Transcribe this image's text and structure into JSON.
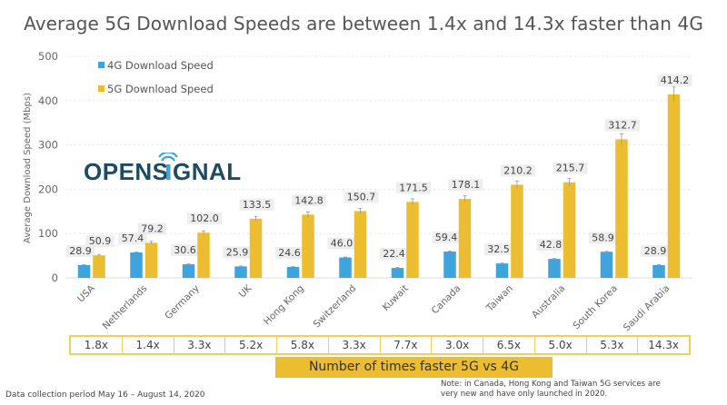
{
  "chart_data": {
    "type": "bar",
    "title": "Average 5G Download Speeds are between 1.4x and 14.3x faster than 4G",
    "xlabel": "",
    "ylabel": "Average Download Speed (Mbps)",
    "ylim": [
      0,
      500
    ],
    "yticks": [
      "0",
      "100",
      "200",
      "300",
      "400",
      "500"
    ],
    "grid": true,
    "legend_position": "top-left",
    "categories": [
      "USA",
      "Netherlands",
      "Germany",
      "UK",
      "Hong Kong",
      "Switzerland",
      "Kuwait",
      "Canada",
      "Taiwan",
      "Australia",
      "South Korea",
      "Saudi Arabia"
    ],
    "series": [
      {
        "name": "4G Download Speed",
        "color": "#3fa4dc",
        "values": [
          28.9,
          57.4,
          30.6,
          25.9,
          24.6,
          46.0,
          22.4,
          59.4,
          32.5,
          42.8,
          58.9,
          28.9
        ],
        "labels": [
          "28.9",
          "57.4",
          "30.6",
          "25.9",
          "24.6",
          "46.0",
          "22.4",
          "59.4",
          "32.5",
          "42.8",
          "58.9",
          "28.9"
        ]
      },
      {
        "name": "5G Download Speed",
        "color": "#ecbd30",
        "values": [
          50.9,
          79.2,
          102.0,
          133.5,
          142.8,
          150.7,
          171.5,
          178.1,
          210.2,
          215.7,
          312.7,
          414.2
        ],
        "labels": [
          "50.9",
          "79.2",
          "102.0",
          "133.5",
          "142.8",
          "150.7",
          "171.5",
          "178.1",
          "210.2",
          "215.7",
          "312.7",
          "414.2"
        ]
      }
    ],
    "multipliers": [
      "1.8x",
      "1.4x",
      "3.3x",
      "5.2x",
      "5.8x",
      "3.3x",
      "7.7x",
      "3.0x",
      "6.5x",
      "5.0x",
      "5.3x",
      "14.3x"
    ],
    "multiplier_label": "Number of times faster 5G vs 4G"
  },
  "logo": {
    "text": "OPENSIGNAL",
    "color": "#1d4b63",
    "accent": "#3fa4dc"
  },
  "footer": {
    "period": "Data collection period May 16 – August 14, 2020",
    "note_line1": "Note: in Canada, Hong Kong and Taiwan 5G services are",
    "note_line2": "very new and have only launched in 2020."
  }
}
